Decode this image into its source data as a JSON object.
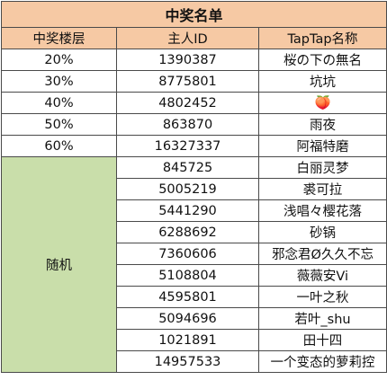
{
  "title": "中奖名单",
  "headers": [
    "中奖楼层",
    "主人ID",
    "TapTap名称"
  ],
  "fixed_rows": [
    {
      "floor": "20%",
      "id": "1390387",
      "name": "桜の下の無名"
    },
    {
      "floor": "30%",
      "id": "8775801",
      "name": "坑坑"
    },
    {
      "floor": "40%",
      "id": "4802452",
      "name": "🍑"
    },
    {
      "floor": "50%",
      "id": "863870",
      "name": "雨夜"
    },
    {
      "floor": "60%",
      "id": "16327337",
      "name": "阿福特磨"
    }
  ],
  "random_label": "随机",
  "random_rows": [
    {
      "id": "845725",
      "name": "白丽灵梦"
    },
    {
      "id": "5005219",
      "name": "裘可拉"
    },
    {
      "id": "5441290",
      "name": "浅唱々樱花落"
    },
    {
      "id": "6288692",
      "name": "砂锅"
    },
    {
      "id": "7360606",
      "name": "邪念君Ø久久不忘"
    },
    {
      "id": "5108804",
      "name": "薇薇安Vi"
    },
    {
      "id": "4595801",
      "name": "一叶之秋"
    },
    {
      "id": "5094696",
      "name": "若叶_shu"
    },
    {
      "id": "1021891",
      "name": "田十四"
    },
    {
      "id": "14957533",
      "name": "一个变态的萝莉控"
    }
  ],
  "colors": {
    "header_bg": "#f6c9a4",
    "random_bg": "#c9deaa",
    "border": "#4a4a4a"
  }
}
